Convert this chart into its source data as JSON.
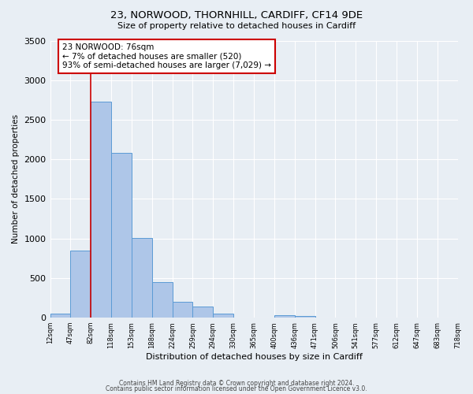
{
  "title1": "23, NORWOOD, THORNHILL, CARDIFF, CF14 9DE",
  "title2": "Size of property relative to detached houses in Cardiff",
  "xlabel": "Distribution of detached houses by size in Cardiff",
  "ylabel": "Number of detached properties",
  "bin_labels": [
    "12sqm",
    "47sqm",
    "82sqm",
    "118sqm",
    "153sqm",
    "188sqm",
    "224sqm",
    "259sqm",
    "294sqm",
    "330sqm",
    "365sqm",
    "400sqm",
    "436sqm",
    "471sqm",
    "506sqm",
    "541sqm",
    "577sqm",
    "612sqm",
    "647sqm",
    "683sqm",
    "718sqm"
  ],
  "bar_values": [
    50,
    850,
    2730,
    2080,
    1010,
    450,
    200,
    140,
    50,
    0,
    0,
    30,
    20,
    0,
    0,
    0,
    0,
    0,
    0,
    0
  ],
  "bar_color": "#aec6e8",
  "bar_edge_color": "#5b9bd5",
  "annotation_text": "23 NORWOOD: 76sqm\n← 7% of detached houses are smaller (520)\n93% of semi-detached houses are larger (7,029) →",
  "annotation_box_color": "#ffffff",
  "annotation_box_edge_color": "#cc0000",
  "red_line_x": 2,
  "ylim": [
    0,
    3500
  ],
  "footer1": "Contains HM Land Registry data © Crown copyright and database right 2024.",
  "footer2": "Contains public sector information licensed under the Open Government Licence v3.0.",
  "background_color": "#e8eef4"
}
